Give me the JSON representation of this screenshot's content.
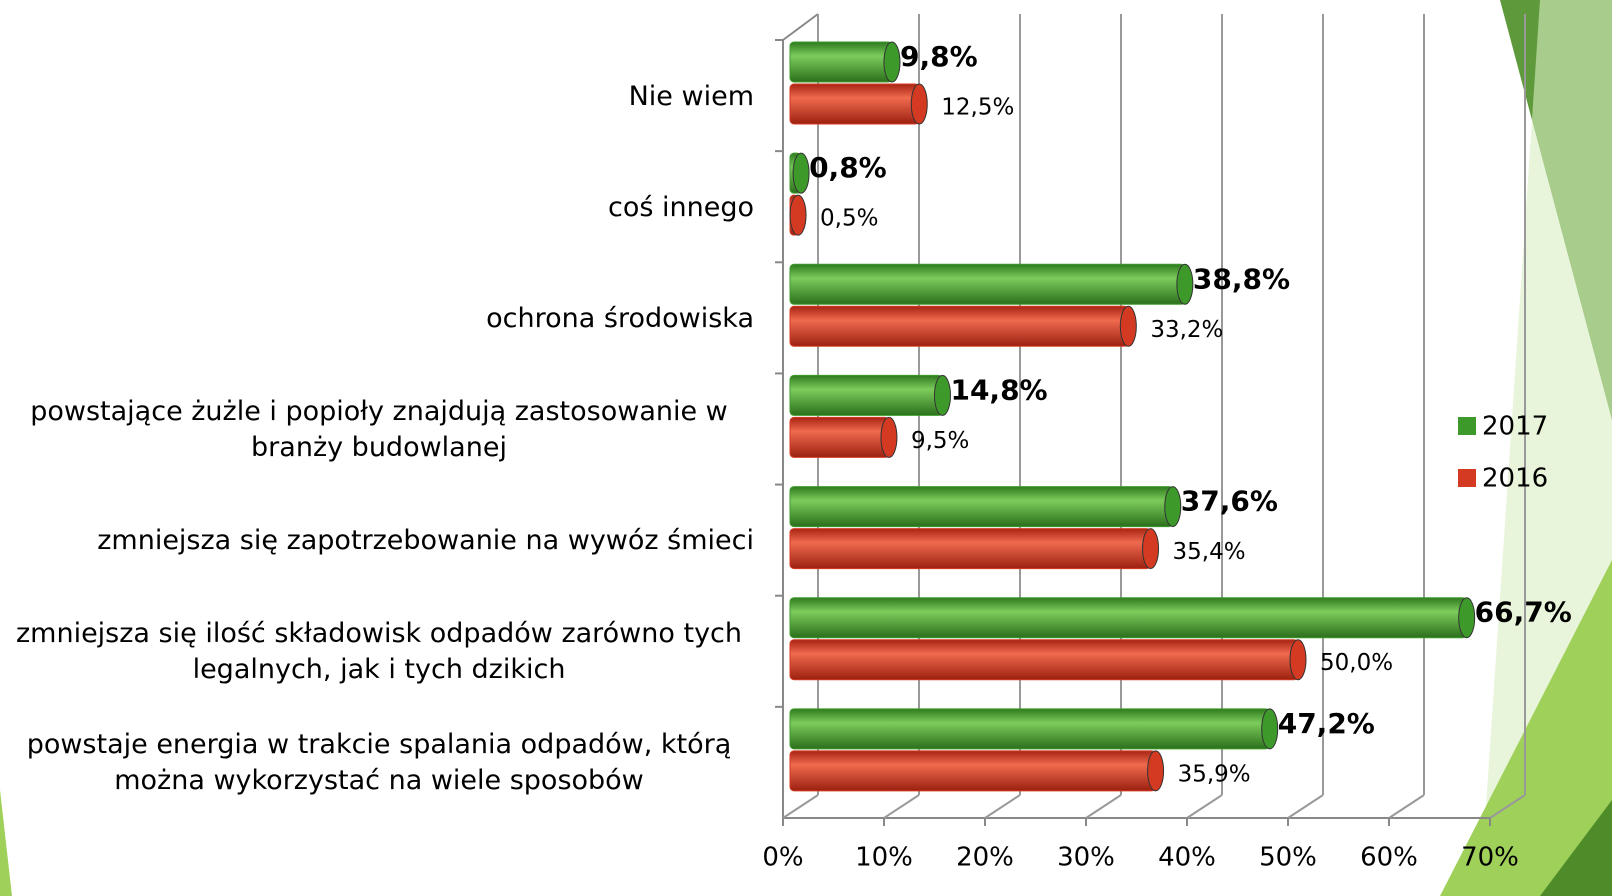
{
  "chart_data": {
    "type": "bar",
    "orientation": "horizontal",
    "categories": [
      "Nie wiem",
      "coś innego",
      "ochrona środowiska",
      "powstające żużle i popioły znajdują zastosowanie w branży budowlanej",
      "zmniejsza się zapotrzebowanie na wywóz śmieci",
      "zmniejsza się ilość składowisk odpadów zarówno tych legalnych, jak i tych dzikich",
      "powstaje energia w trakcie spalania odpadów, którą można wykorzystać na wiele sposobów"
    ],
    "series": [
      {
        "name": "2017",
        "color": "#3d9a2a",
        "values": [
          9.8,
          0.8,
          38.8,
          14.8,
          37.6,
          66.7,
          47.2
        ],
        "value_labels": [
          "9,8%",
          "0,8%",
          "38,8%",
          "14,8%",
          "37,6%",
          "66,7%",
          "47,2%"
        ]
      },
      {
        "name": "2016",
        "color": "#d43a22",
        "values": [
          12.5,
          0.5,
          33.2,
          9.5,
          35.4,
          50.0,
          35.9
        ],
        "value_labels": [
          "12,5%",
          "0,5%",
          "33,2%",
          "9,5%",
          "35,4%",
          "50,0%",
          "35,9%"
        ]
      }
    ],
    "xlim": [
      0,
      70
    ],
    "xticks": [
      {
        "value": 0,
        "label": "0%"
      },
      {
        "value": 10,
        "label": "10%"
      },
      {
        "value": 20,
        "label": "20%"
      },
      {
        "value": 30,
        "label": "30%"
      },
      {
        "value": 40,
        "label": "40%"
      },
      {
        "value": 50,
        "label": "50%"
      },
      {
        "value": 60,
        "label": "60%"
      },
      {
        "value": 70,
        "label": "70%"
      }
    ],
    "grid": true,
    "legend": "right"
  }
}
